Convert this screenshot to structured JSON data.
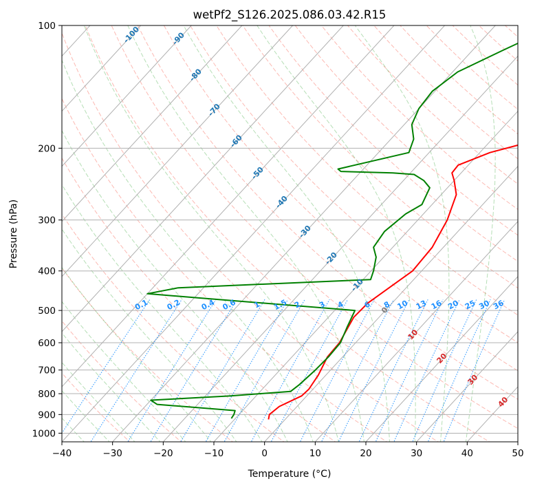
{
  "chart_data": {
    "type": "line",
    "subtype": "skew-t log-p diagram",
    "title": "wetPf2_S126.2025.086.03.42.R15",
    "xlabel": "Temperature (°C)",
    "ylabel": "Pressure (hPa)",
    "xlim": [
      -40,
      50
    ],
    "ylim": [
      1050,
      100
    ],
    "y_scale": "log",
    "grid": true,
    "x_ticks": [
      -40,
      -30,
      -20,
      -10,
      0,
      10,
      20,
      30,
      40,
      50
    ],
    "x_tick_labels": [
      "−40",
      "−30",
      "−20",
      "−10",
      "0",
      "10",
      "20",
      "30",
      "40",
      "50"
    ],
    "y_ticks": [
      1000,
      900,
      800,
      700,
      600,
      500,
      400,
      300,
      200,
      100
    ],
    "y_tick_labels": [
      "1000",
      "900",
      "800",
      "700",
      "600",
      "500",
      "400",
      "300",
      "200",
      "100"
    ],
    "series": [
      {
        "color": "#ff0000",
        "x": [
          -3.3,
          -4.0,
          -3.5,
          -1.0,
          -0.8,
          -1.5,
          -3.0,
          -3.2,
          -5.0,
          -4.8,
          -3.0,
          -1.8,
          -2.2,
          -4.2,
          -7.0,
          -10.0,
          -11.8,
          -12.0,
          -8.0,
          -3.0,
          6.0,
          8.0,
          12.0,
          19.0,
          21.0,
          23.0
        ],
        "y": [
          925,
          900,
          860,
          810,
          780,
          720,
          650,
          600,
          520,
          480,
          430,
          400,
          350,
          300,
          260,
          240,
          230,
          220,
          205,
          195,
          175,
          160,
          150,
          130,
          115,
          100
        ]
      },
      {
        "color": "#008000",
        "x": [
          -10.8,
          -11.0,
          -11.5,
          -28.0,
          -30.0,
          -15.0,
          -4.0,
          -3.5,
          -3.0,
          -2.8,
          -3.0,
          -4.5,
          -6.0,
          -40.0,
          -50.0,
          -45.0,
          -8.5,
          -9.5,
          -11.5,
          -13.8,
          -14.5,
          -13.5,
          -12.0,
          -13.5,
          -16.0,
          -19.0,
          -23.5,
          -34.0,
          -35.0,
          -24.0,
          -25.5,
          -28.5,
          -30.0,
          -30.5,
          -29.0,
          -24.0,
          -18.0
        ],
        "y": [
          920,
          900,
          880,
          850,
          830,
          810,
          790,
          760,
          700,
          650,
          600,
          550,
          500,
          465,
          455,
          440,
          420,
          400,
          370,
          350,
          320,
          290,
          275,
          250,
          240,
          232,
          230,
          228,
          225,
          205,
          190,
          175,
          160,
          145,
          130,
          115,
          100
        ]
      }
    ],
    "isotherm_labels": [
      "-100",
      "-90",
      "-80",
      "-70",
      "-60",
      "-50",
      "-40",
      "-30",
      "-20",
      "-10",
      "0",
      "10",
      "20",
      "30",
      "40"
    ],
    "isotherm_values": [
      -100,
      -90,
      -80,
      -70,
      -60,
      -50,
      -40,
      -30,
      -20,
      -10,
      0,
      10,
      20,
      30,
      40
    ],
    "mixing_ratio_labels": [
      "0.1",
      "0.2",
      "0.4",
      "0.6",
      "1",
      "1.5",
      "2",
      "3",
      "4",
      "6",
      "8",
      "10",
      "13",
      "16",
      "20",
      "25",
      "30",
      "36"
    ],
    "mixing_ratio_values": [
      0.1,
      0.2,
      0.4,
      0.6,
      1,
      1.5,
      2,
      3,
      4,
      6,
      8,
      10,
      13,
      16,
      20,
      25,
      30,
      36
    ],
    "colors": {
      "temperature": "#ff0000",
      "dewpoint": "#008000",
      "cold_isotherm_label": "#1f77b4",
      "zero_isotherm_label": "#7f7f7f",
      "warm_isotherm_label": "#d62728",
      "mixing_ratio": "#1e90ff",
      "dry_adiabat": "#fa8072",
      "moist_adiabat": "#2ca02c",
      "grid": "#b0b0b0"
    }
  }
}
